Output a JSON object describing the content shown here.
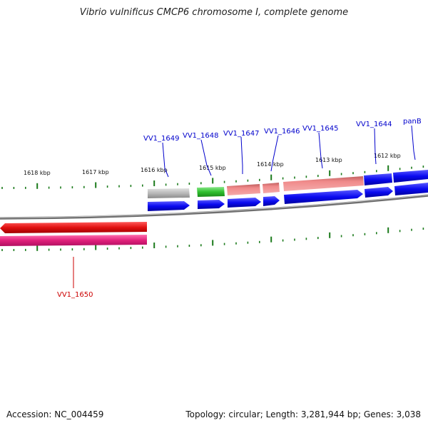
{
  "title": "Vibrio vulnificus CMCP6 chromosome I, complete genome",
  "footer": {
    "accession": "Accession: NC_004459",
    "stats": "Topology: circular; Length: 3,281,944 bp; Genes: 3,038"
  },
  "tick_labels": [
    "1618 kbp",
    "1617 kbp",
    "1616 kbp",
    "1615 kbp",
    "1614 kbp",
    "1613 kbp",
    "1612 kbp"
  ],
  "genes": [
    {
      "label": "VV1_1649",
      "color": "#0000cc"
    },
    {
      "label": "VV1_1648",
      "color": "#0000cc"
    },
    {
      "label": "VV1_1647",
      "color": "#0000cc"
    },
    {
      "label": "VV1_1646",
      "color": "#0000cc"
    },
    {
      "label": "VV1_1645",
      "color": "#0000cc"
    },
    {
      "label": "VV1_1644",
      "color": "#0000cc"
    },
    {
      "label": "panB",
      "color": "#0000cc"
    },
    {
      "label": "VV1_1650",
      "color": "#cc0000"
    }
  ],
  "colors": {
    "backbone": "#808080",
    "tick": "#1a7a1a",
    "feature_red": "#e01010",
    "feature_magenta": "#e0207a",
    "feature_blue": "#0a0af0",
    "feature_gray": "#b8b8b8",
    "feature_green": "#30c030",
    "feature_salmon": "#f08a8a"
  }
}
